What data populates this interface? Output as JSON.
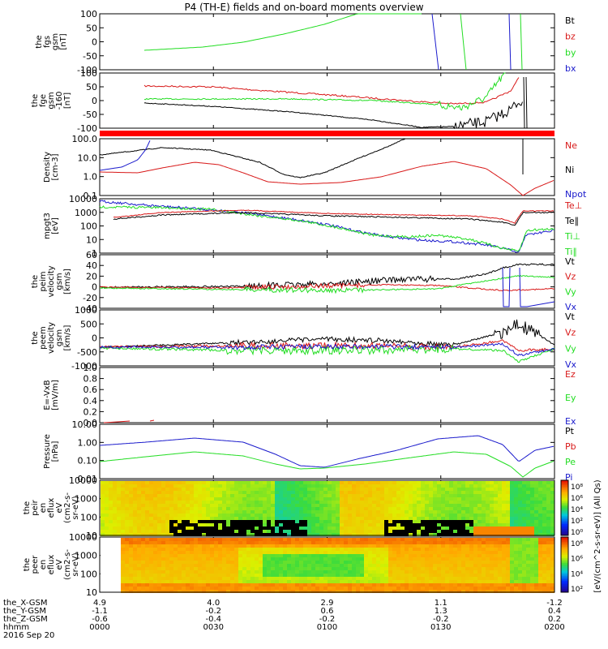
{
  "title": "P4 (TH-E) fields and on-board moments overview",
  "colors": {
    "black": "#000000",
    "red": "#d81818",
    "green": "#22dd22",
    "blue": "#1a1acc",
    "red_band": "#ff0000"
  },
  "chart_data": [
    {
      "type": "line",
      "id": "fgs",
      "ylabel": [
        "the",
        "fgs",
        "gsm",
        "[nT]"
      ],
      "ylim": [
        -100,
        100
      ],
      "yticks": [
        "100",
        "50",
        "0",
        "-50",
        "-100"
      ],
      "legend": [
        {
          "name": "Bt",
          "color": "black"
        },
        {
          "name": "bz",
          "color": "red"
        },
        {
          "name": "by",
          "color": "green"
        },
        {
          "name": "bx",
          "color": "blue"
        }
      ]
    },
    {
      "type": "line",
      "id": "fge",
      "ylabel": [
        "the",
        "fge",
        "gsm",
        "-160",
        "[nT]"
      ],
      "ylim": [
        -125,
        100
      ],
      "yticks": [
        "100",
        "50",
        "0",
        "-50",
        "-100"
      ]
    },
    {
      "type": "line",
      "id": "density",
      "ylabel": [
        "Density",
        "[cm-3]"
      ],
      "yticks": [
        "100.0",
        "10.0",
        "1.0",
        "0.1"
      ],
      "legend": [
        {
          "name": "Ne",
          "color": "red"
        },
        {
          "name": "Ni",
          "color": "black"
        },
        {
          "name": "Npot",
          "color": "blue"
        }
      ]
    },
    {
      "type": "line",
      "id": "temp",
      "ylabel": [
        "mpgt3",
        "[eV]"
      ],
      "yticks": [
        "10000",
        "1000",
        "100",
        "10",
        "1"
      ],
      "legend": [
        {
          "name": "Te⊥",
          "color": "red"
        },
        {
          "name": "Te∥",
          "color": "black"
        },
        {
          "name": "Ti⊥",
          "color": "green"
        },
        {
          "name": "Ti∥",
          "color": "green"
        }
      ]
    },
    {
      "type": "line",
      "id": "peim",
      "ylabel": [
        "the",
        "peim",
        "velocity",
        "gsm",
        "[km/s]"
      ],
      "ylim": [
        -40,
        60
      ],
      "yticks": [
        "60",
        "40",
        "20",
        "0",
        "-20",
        "-40"
      ],
      "legend": [
        {
          "name": "Vt",
          "color": "black"
        },
        {
          "name": "Vz",
          "color": "red"
        },
        {
          "name": "Vy",
          "color": "green"
        },
        {
          "name": "Vx",
          "color": "blue"
        }
      ]
    },
    {
      "type": "line",
      "id": "peem",
      "ylabel": [
        "the",
        "peem",
        "velocity",
        "gsm",
        "[km/s]"
      ],
      "ylim": [
        -1000,
        1000
      ],
      "yticks": [
        "1000",
        "500",
        "0",
        "-500",
        "-1000"
      ],
      "legend": [
        {
          "name": "Vt",
          "color": "black"
        },
        {
          "name": "Vz",
          "color": "red"
        },
        {
          "name": "Vy",
          "color": "green"
        },
        {
          "name": "Vx",
          "color": "blue"
        }
      ]
    },
    {
      "type": "line",
      "id": "efield",
      "ylabel": [
        "E=-VxB",
        "[mV/m]"
      ],
      "ylim": [
        0,
        1
      ],
      "yticks": [
        "1.0",
        "0.8",
        "0.6",
        "0.4",
        "0.2",
        "0.0"
      ],
      "legend": [
        {
          "name": "Ez",
          "color": "red"
        },
        {
          "name": "Ey",
          "color": "green"
        },
        {
          "name": "Ex",
          "color": "blue"
        }
      ]
    },
    {
      "type": "line",
      "id": "pressure",
      "ylabel": [
        "Pressure",
        "[nPa]"
      ],
      "yticks": [
        "10.00",
        "1.00",
        "0.10",
        "0.01"
      ],
      "legend": [
        {
          "name": "Pt",
          "color": "black"
        },
        {
          "name": "Pb",
          "color": "red"
        },
        {
          "name": "Pe",
          "color": "green"
        },
        {
          "name": "Pi",
          "color": "blue"
        }
      ]
    },
    {
      "type": "heatmap",
      "id": "peir",
      "ylabel": [
        "the",
        "peir",
        "en",
        "eflux",
        "eV",
        "(cm2-s-",
        "sr-eV)"
      ],
      "yticks": [
        "10000",
        "1000",
        "100",
        "10"
      ]
    },
    {
      "type": "heatmap",
      "id": "peer",
      "ylabel": [
        "the",
        "peer",
        "en",
        "eflux",
        "eV",
        "(cm2-s-",
        "sr-eV)"
      ],
      "yticks": [
        "10000",
        "1000",
        "100",
        "10"
      ]
    }
  ],
  "colorbar": {
    "label": "[eV/(cm^2-s-sr-eV)] (All Qs)",
    "ticks_top": [
      "10⁸",
      "10⁶",
      "10⁴",
      "10²",
      "10⁰"
    ],
    "ticks_bottom": [
      "10⁸",
      "10⁶",
      "10⁴",
      "10²"
    ]
  },
  "xaxis": {
    "rows": [
      {
        "name": "the_X-GSM",
        "values": [
          "4.9",
          "4.0",
          "2.9",
          "1.1",
          "-1.2"
        ]
      },
      {
        "name": "the_Y-GSM",
        "values": [
          "-1.1",
          "-0.2",
          "0.6",
          "1.3",
          "0.4"
        ]
      },
      {
        "name": "the_Z-GSM",
        "values": [
          "-0.6",
          "-0.4",
          "-0.2",
          "-0.2",
          "0.2"
        ]
      },
      {
        "name": "hhmm",
        "values": [
          "0000",
          "0030",
          "0100",
          "0130",
          "0200"
        ]
      }
    ],
    "date": "2016 Sep 20"
  }
}
